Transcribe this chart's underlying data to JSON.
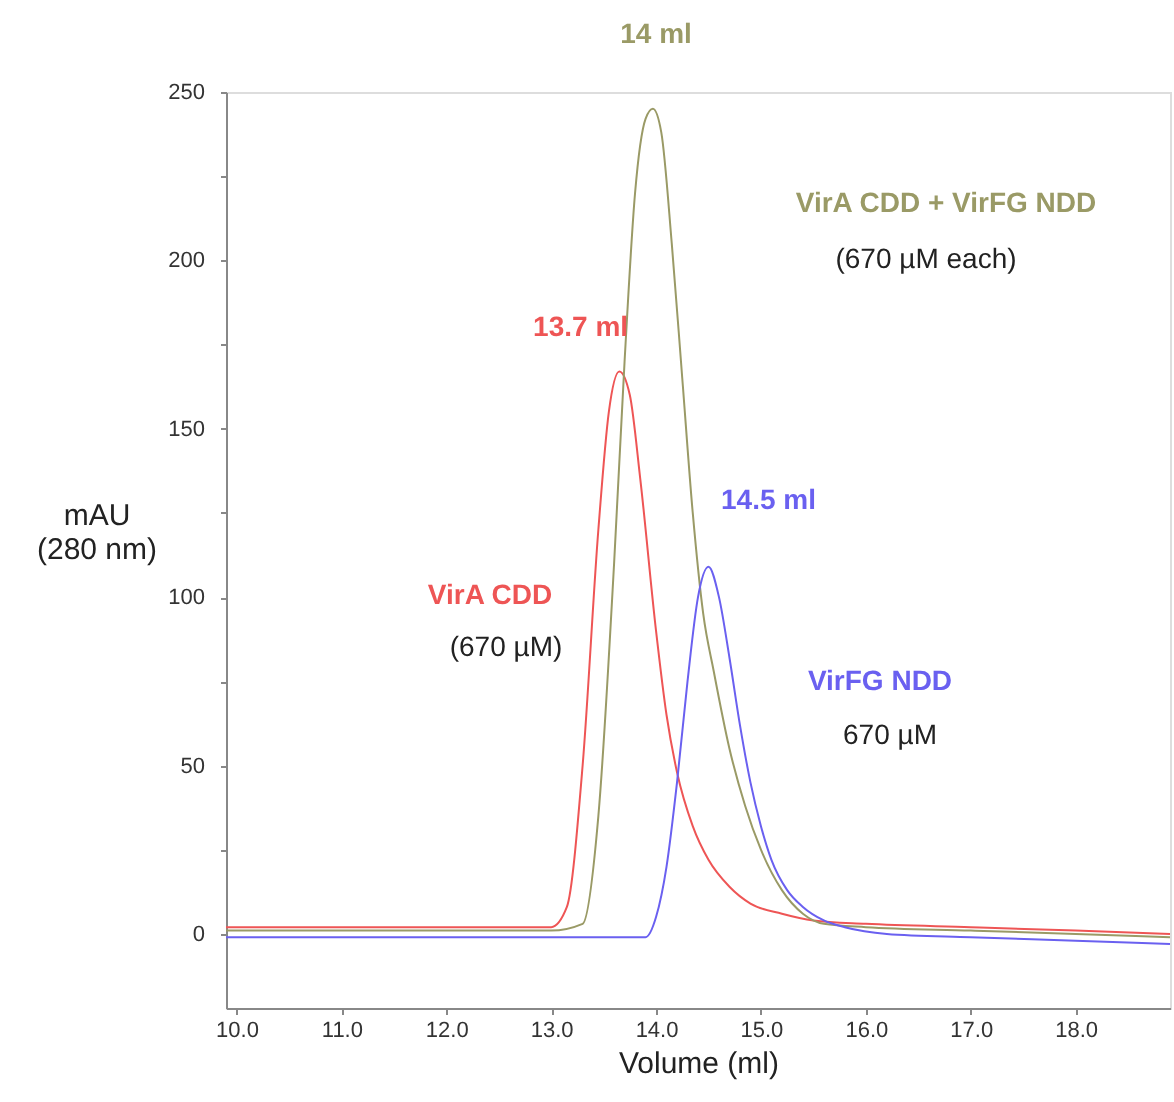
{
  "chart_data": {
    "type": "line",
    "xlabel": "Volume (ml)",
    "ylabel": "mAU (280 nm)",
    "xlim": [
      9.9,
      18.9
    ],
    "ylim": [
      -22,
      250
    ],
    "xticks": [
      {
        "value": 10,
        "label": "10.0"
      },
      {
        "value": 11,
        "label": "11.0"
      },
      {
        "value": 12,
        "label": "12.0"
      },
      {
        "value": 13,
        "label": "13.0"
      },
      {
        "value": 14,
        "label": "14.0"
      },
      {
        "value": 15,
        "label": "15.0"
      },
      {
        "value": 16,
        "label": "16.0"
      },
      {
        "value": 17,
        "label": "17.0"
      },
      {
        "value": 18,
        "label": "18.0"
      }
    ],
    "yticks": [
      0,
      {
        "value": 25,
        "label": null
      },
      50,
      {
        "value": 75,
        "label": null
      },
      100,
      {
        "value": 125,
        "label": null
      },
      150,
      {
        "value": 175,
        "label": null
      },
      200,
      {
        "value": 225,
        "label": null
      },
      250
    ],
    "grid": false,
    "legend": false,
    "line_style": "solid",
    "marker": "none",
    "series": [
      {
        "name": "VirA CDD",
        "color": "#ee5555",
        "x": [
          9.9,
          11,
          12,
          13,
          13.15,
          13.3,
          13.45,
          13.55,
          13.65,
          13.75,
          13.85,
          14.0,
          14.1,
          14.2,
          14.35,
          14.5,
          14.7,
          14.9,
          15.2,
          15.5,
          16,
          17,
          18,
          18.9
        ],
        "values": [
          2,
          2,
          2,
          2,
          8,
          50,
          120,
          155,
          167,
          160,
          135,
          90,
          65,
          48,
          32,
          22,
          14,
          9,
          6,
          4,
          3,
          2,
          1,
          0
        ]
      },
      {
        "name": "VirA CDD + VirFG NDD",
        "color": "#9a9a66",
        "x": [
          9.9,
          11,
          12,
          13,
          13.3,
          13.45,
          13.6,
          13.7,
          13.8,
          13.9,
          13.97,
          14.05,
          14.15,
          14.25,
          14.35,
          14.45,
          14.55,
          14.7,
          14.85,
          15.0,
          15.2,
          15.4,
          15.6,
          16,
          17,
          18,
          18.9
        ],
        "values": [
          1,
          1,
          1,
          1,
          3,
          35,
          110,
          170,
          220,
          242,
          245,
          238,
          205,
          165,
          125,
          95,
          78,
          55,
          38,
          25,
          13,
          6,
          3,
          2,
          1,
          0,
          -1
        ]
      },
      {
        "name": "VirFG NDD",
        "color": "#6a60f0",
        "x": [
          9.9,
          11,
          12,
          13,
          13.9,
          14.0,
          14.1,
          14.2,
          14.3,
          14.4,
          14.5,
          14.6,
          14.7,
          14.8,
          14.9,
          15.0,
          15.1,
          15.25,
          15.4,
          15.6,
          15.8,
          16.2,
          17,
          18,
          18.9
        ],
        "values": [
          -1,
          -1,
          -1,
          -1,
          -1,
          5,
          20,
          45,
          75,
          100,
          109,
          100,
          82,
          62,
          45,
          32,
          22,
          13,
          8,
          4,
          2,
          0,
          -1,
          -2,
          -3
        ]
      }
    ],
    "annotations": [
      {
        "text": "13.7 ml",
        "x": 13.7,
        "y": 167
      },
      {
        "text": "14 ml",
        "x": 14,
        "y": 245
      },
      {
        "text": "14.5 ml",
        "x": 14.5,
        "y": 109
      },
      "(670 µM)",
      "(670 µM each)",
      "670 µM"
    ]
  }
}
